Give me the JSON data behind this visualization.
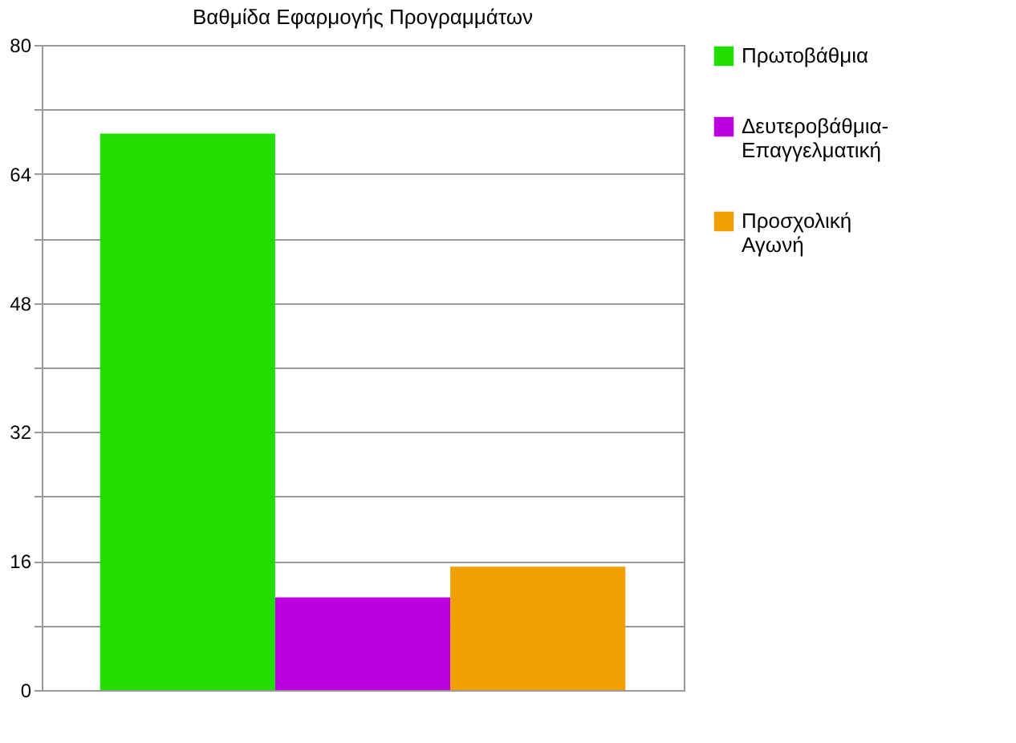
{
  "chart_data": {
    "type": "bar",
    "title": "Βαθμίδα Εφαρμογής Προγραμμάτων",
    "categories": [
      null
    ],
    "series": [
      {
        "name": "Πρωτοβάθμια",
        "color": "#22dd00",
        "values": [
          69
        ]
      },
      {
        "name": "Δευτεροβάθμια-Επαγγελματική",
        "color": "#bb00dd",
        "values": [
          11.5
        ]
      },
      {
        "name": "Προσχολική Αγωνή",
        "color": "#f0a000",
        "values": [
          15.3
        ]
      }
    ],
    "ylim": [
      0,
      80
    ],
    "yticks": [
      0,
      {
        "value": 8,
        "label": null
      },
      16,
      {
        "value": 24,
        "label": null
      },
      32,
      {
        "value": 40,
        "label": null
      },
      48,
      {
        "value": 56,
        "label": null
      },
      64,
      {
        "value": 72,
        "label": null
      },
      80
    ],
    "grid": "y",
    "legend": "right"
  }
}
